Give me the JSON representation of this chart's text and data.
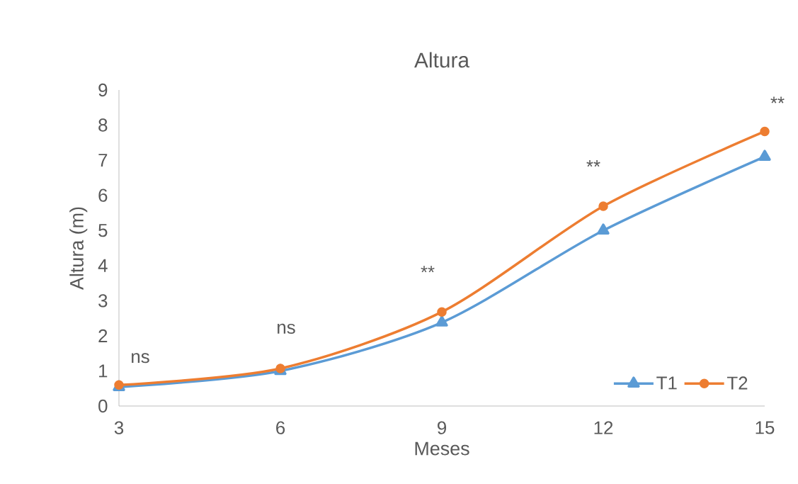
{
  "chart_data": {
    "type": "line",
    "title": "Altura",
    "xlabel": "Meses",
    "ylabel": "Altura (m)",
    "x": [
      3,
      6,
      9,
      12,
      15
    ],
    "series": [
      {
        "name": "T1",
        "color": "#5b9bd5",
        "marker": "triangle",
        "values": [
          0.54,
          1.0,
          2.38,
          5.0,
          7.1
        ]
      },
      {
        "name": "T2",
        "color": "#ed7d31",
        "marker": "circle",
        "values": [
          0.6,
          1.07,
          2.68,
          5.69,
          7.82
        ]
      }
    ],
    "xlim": [
      3,
      15
    ],
    "xticks": [
      3,
      6,
      9,
      12,
      15
    ],
    "ylim": [
      0,
      9
    ],
    "yticks": [
      0,
      1,
      2,
      3,
      4,
      5,
      6,
      7,
      8,
      9
    ],
    "grid": false,
    "legend": "bottom right",
    "line_style": "solid",
    "annotations": [
      {
        "text": "ns",
        "x": 3,
        "y": 0.6
      },
      {
        "text": "ns",
        "x": 6,
        "y": 1.07
      },
      {
        "text": "**",
        "x": 9,
        "y": 2.68
      },
      {
        "text": "**",
        "x": 12,
        "y": 5.69
      },
      {
        "text": "**",
        "x": 15,
        "y": 7.82
      }
    ]
  }
}
